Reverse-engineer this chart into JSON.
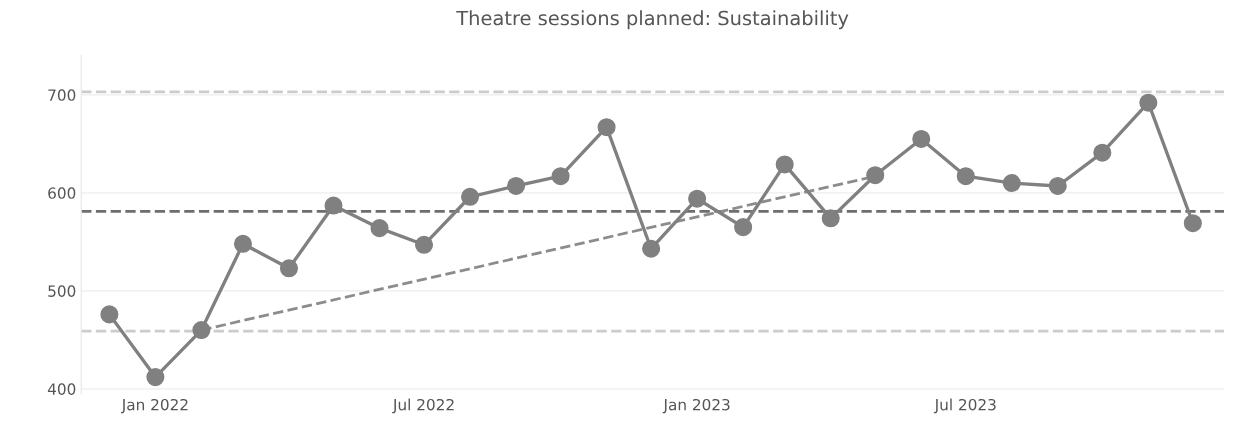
{
  "chart_data": {
    "type": "line",
    "title": "Theatre sessions planned: Sustainability",
    "x": [
      "2021-12",
      "2022-01",
      "2022-02",
      "2022-03",
      "2022-04",
      "2022-05",
      "2022-06",
      "2022-07",
      "2022-08",
      "2022-09",
      "2022-10",
      "2022-11",
      "2022-12",
      "2023-01",
      "2023-02",
      "2023-03",
      "2023-04",
      "2023-05",
      "2023-06",
      "2023-07",
      "2023-08",
      "2023-09",
      "2023-10",
      "2023-11",
      "2023-12"
    ],
    "series": [
      {
        "color": "#808080",
        "marker": "circle",
        "line_style": "solid",
        "values": [
          476,
          412,
          460,
          548,
          523,
          587,
          564,
          547,
          596,
          607,
          617,
          667,
          543,
          594,
          565,
          629,
          574,
          618,
          655,
          617,
          610,
          607,
          641,
          692,
          569
        ]
      },
      {
        "type": "line",
        "color": "#8c8c8c",
        "marker": "none",
        "line_style": "dashed",
        "x": [
          "2022-02",
          "2023-05"
        ],
        "values": [
          460,
          617
        ]
      }
    ],
    "ref_lines": [
      {
        "axis": "y",
        "value": 581,
        "label": null,
        "color": "#6e6e6e",
        "line_style": "dashed"
      },
      {
        "axis": "y",
        "value": 703,
        "label": null,
        "color": "#cccccc",
        "line_style": "dashed"
      },
      {
        "axis": "y",
        "value": 459,
        "label": null,
        "color": "#cccccc",
        "line_style": "dashed"
      }
    ],
    "xlim": [
      "2021-11-12",
      "2023-12-22"
    ],
    "xticks": [
      {
        "value": "2022-01",
        "label": "Jan 2022"
      },
      {
        "value": "2022-07",
        "label": "Jul 2022"
      },
      {
        "value": "2023-01",
        "label": "Jan 2023"
      },
      {
        "value": "2023-07",
        "label": "Jul 2023"
      }
    ],
    "ylim": [
      395,
      740
    ],
    "yticks": [
      400,
      500,
      600,
      700
    ],
    "grid": "y",
    "legend": false
  }
}
